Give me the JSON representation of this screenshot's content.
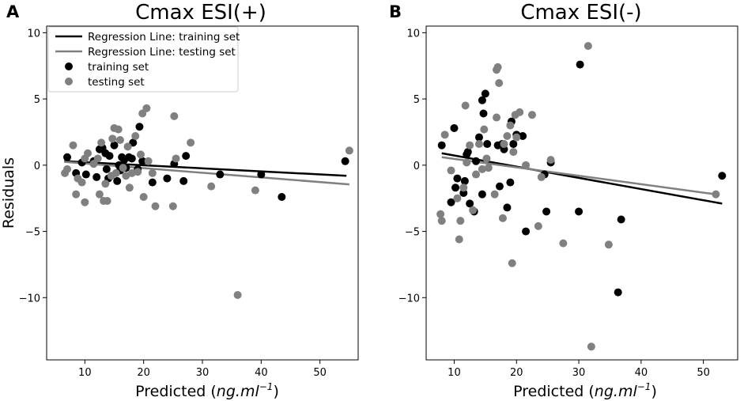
{
  "figure": {
    "ylabel": "Residuals",
    "xlabel_prefix": "Predicted (",
    "xlabel_unit": "ng.ml",
    "xlabel_exp": "−1",
    "xlabel_suffix": ")",
    "colors": {
      "training": "#000000",
      "testing": "#808080"
    }
  },
  "chart_data": [
    {
      "type": "scatter",
      "panel_letter": "A",
      "title": "Cmax ESI(+)",
      "xlim": [
        3.5,
        56.5
      ],
      "ylim": [
        -14.7,
        10.5
      ],
      "xticks": [
        10,
        20,
        30,
        40,
        50
      ],
      "yticks": [
        -10,
        -5,
        0,
        5,
        10
      ],
      "ytick_labels": [
        "−10",
        "−5",
        "0",
        "5",
        "10"
      ],
      "legend": {
        "position": "top-left",
        "entries": [
          {
            "label": "Regression Line: training set",
            "kind": "line",
            "color": "#000000"
          },
          {
            "label": "Regression Line: testing set",
            "kind": "line",
            "color": "#808080"
          },
          {
            "label": "training set",
            "kind": "marker",
            "color": "#000000"
          },
          {
            "label": "testing set",
            "kind": "marker",
            "color": "#808080"
          }
        ]
      },
      "regression_lines": [
        {
          "name": "Regression Line: training set",
          "color": "#000000",
          "x": [
            6.5,
            54.5
          ],
          "y": [
            0.3,
            -0.8
          ]
        },
        {
          "name": "Regression Line: testing set",
          "color": "#808080",
          "x": [
            6.5,
            55
          ],
          "y": [
            0.25,
            -1.45
          ]
        }
      ],
      "series": [
        {
          "name": "training set",
          "color": "#000000",
          "points": [
            [
              7.0,
              0.6
            ],
            [
              8.5,
              -0.6
            ],
            [
              9.5,
              0.2
            ],
            [
              10.2,
              -0.7
            ],
            [
              11.5,
              0.3
            ],
            [
              12.0,
              -0.9
            ],
            [
              12.5,
              1.2
            ],
            [
              13.0,
              1.3
            ],
            [
              13.5,
              0.9
            ],
            [
              13.7,
              -0.3
            ],
            [
              14.0,
              -1.0
            ],
            [
              14.2,
              0.7
            ],
            [
              15.0,
              1.5
            ],
            [
              15.5,
              -1.2
            ],
            [
              15.8,
              0.0
            ],
            [
              16.0,
              -0.4
            ],
            [
              16.3,
              0.6
            ],
            [
              16.7,
              0.4
            ],
            [
              17.0,
              -0.2
            ],
            [
              17.5,
              0.6
            ],
            [
              18.0,
              0.5
            ],
            [
              18.2,
              1.7
            ],
            [
              19.0,
              -0.3
            ],
            [
              19.3,
              2.9
            ],
            [
              19.8,
              0.3
            ],
            [
              21.5,
              -1.3
            ],
            [
              24.0,
              -1.0
            ],
            [
              25.2,
              0.1
            ],
            [
              26.8,
              -1.2
            ],
            [
              27.2,
              0.7
            ],
            [
              33.0,
              -0.7
            ],
            [
              40.0,
              -0.7
            ],
            [
              43.5,
              -2.4
            ],
            [
              54.3,
              0.3
            ]
          ]
        },
        {
          "name": "testing set",
          "color": "#808080",
          "points": [
            [
              6.6,
              -0.6
            ],
            [
              7.0,
              -0.3
            ],
            [
              8.0,
              1.5
            ],
            [
              8.5,
              -2.2
            ],
            [
              8.8,
              -1.0
            ],
            [
              9.5,
              -1.3
            ],
            [
              10.0,
              0.5
            ],
            [
              10.0,
              -2.8
            ],
            [
              10.5,
              0.9
            ],
            [
              11.5,
              0.1
            ],
            [
              12.2,
              0.5
            ],
            [
              12.5,
              -2.2
            ],
            [
              12.8,
              1.7
            ],
            [
              13.2,
              -2.7
            ],
            [
              13.5,
              -1.4
            ],
            [
              13.8,
              -2.7
            ],
            [
              14.5,
              -0.8
            ],
            [
              14.7,
              2.0
            ],
            [
              15.0,
              2.8
            ],
            [
              15.3,
              -0.6
            ],
            [
              15.7,
              2.7
            ],
            [
              16.0,
              1.9
            ],
            [
              16.5,
              -0.2
            ],
            [
              17.0,
              -0.8
            ],
            [
              17.3,
              1.4
            ],
            [
              17.6,
              -1.7
            ],
            [
              18.0,
              -0.6
            ],
            [
              18.6,
              2.2
            ],
            [
              19.0,
              -0.5
            ],
            [
              19.5,
              0.8
            ],
            [
              19.8,
              3.9
            ],
            [
              20.0,
              -2.4
            ],
            [
              20.5,
              4.3
            ],
            [
              20.8,
              0.3
            ],
            [
              21.5,
              -0.6
            ],
            [
              22.0,
              -3.1
            ],
            [
              25.0,
              -3.1
            ],
            [
              25.2,
              3.7
            ],
            [
              25.5,
              0.5
            ],
            [
              28.0,
              1.7
            ],
            [
              31.5,
              -1.6
            ],
            [
              36.0,
              -9.8
            ],
            [
              39.0,
              -1.9
            ],
            [
              55.0,
              1.1
            ]
          ]
        }
      ]
    },
    {
      "type": "scatter",
      "panel_letter": "B",
      "title": "Cmax ESI(-)",
      "xlim": [
        5.5,
        55.5
      ],
      "ylim": [
        -14.7,
        10.5
      ],
      "xticks": [
        10,
        20,
        30,
        40,
        50
      ],
      "yticks": [
        -10,
        -5,
        0,
        5,
        10
      ],
      "ytick_labels": [
        "−10",
        "−5",
        "0",
        "5",
        "10"
      ],
      "regression_lines": [
        {
          "name": "Regression Line: training set",
          "color": "#000000",
          "x": [
            8.0,
            53.0
          ],
          "y": [
            0.9,
            -2.9
          ]
        },
        {
          "name": "Regression Line: testing set",
          "color": "#808080",
          "x": [
            8.0,
            52.0
          ],
          "y": [
            0.6,
            -2.2
          ]
        }
      ],
      "series": [
        {
          "name": "training set",
          "color": "#000000",
          "points": [
            [
              8.0,
              1.5
            ],
            [
              9.5,
              -2.8
            ],
            [
              10.0,
              2.8
            ],
            [
              10.2,
              -1.7
            ],
            [
              10.5,
              -1.0
            ],
            [
              11.5,
              -2.1
            ],
            [
              11.7,
              -1.2
            ],
            [
              12.0,
              0.8
            ],
            [
              12.2,
              1.0
            ],
            [
              12.5,
              -2.9
            ],
            [
              13.2,
              -3.5
            ],
            [
              13.5,
              0.3
            ],
            [
              14.0,
              2.1
            ],
            [
              14.5,
              -2.2
            ],
            [
              14.5,
              4.9
            ],
            [
              14.7,
              3.9
            ],
            [
              15.0,
              5.4
            ],
            [
              15.3,
              1.6
            ],
            [
              17.0,
              1.5
            ],
            [
              17.3,
              -1.6
            ],
            [
              17.7,
              1.6
            ],
            [
              18.0,
              1.2
            ],
            [
              18.5,
              -3.2
            ],
            [
              19.0,
              -1.3
            ],
            [
              19.2,
              3.3
            ],
            [
              19.5,
              1.6
            ],
            [
              20.0,
              2.3
            ],
            [
              21.0,
              2.2
            ],
            [
              21.5,
              -5.0
            ],
            [
              24.5,
              -0.7
            ],
            [
              24.8,
              -3.5
            ],
            [
              25.5,
              0.2
            ],
            [
              30.0,
              -3.5
            ],
            [
              30.2,
              7.6
            ],
            [
              36.3,
              -9.6
            ],
            [
              36.8,
              -4.1
            ],
            [
              53.0,
              -0.8
            ]
          ]
        },
        {
          "name": "testing set",
          "color": "#808080",
          "points": [
            [
              7.8,
              -3.7
            ],
            [
              8.0,
              -4.2
            ],
            [
              8.5,
              2.3
            ],
            [
              9.5,
              -0.4
            ],
            [
              10.5,
              -2.5
            ],
            [
              10.8,
              -5.6
            ],
            [
              11.0,
              -4.2
            ],
            [
              11.5,
              -1.7
            ],
            [
              11.8,
              4.5
            ],
            [
              12.0,
              0.2
            ],
            [
              12.5,
              1.5
            ],
            [
              13.0,
              -3.4
            ],
            [
              13.5,
              -0.7
            ],
            [
              14.0,
              1.6
            ],
            [
              14.5,
              -0.3
            ],
            [
              14.8,
              2.7
            ],
            [
              15.2,
              0.5
            ],
            [
              15.5,
              -0.2
            ],
            [
              16.5,
              -2.2
            ],
            [
              16.8,
              3.6
            ],
            [
              16.8,
              7.2
            ],
            [
              17.0,
              7.4
            ],
            [
              17.2,
              6.2
            ],
            [
              17.8,
              -4.0
            ],
            [
              18.0,
              1.6
            ],
            [
              18.5,
              2.2
            ],
            [
              19.0,
              3.0
            ],
            [
              19.3,
              -7.4
            ],
            [
              19.5,
              1.0
            ],
            [
              19.8,
              3.8
            ],
            [
              20.0,
              2.1
            ],
            [
              20.5,
              4.0
            ],
            [
              21.5,
              0.0
            ],
            [
              22.5,
              3.8
            ],
            [
              23.5,
              -4.6
            ],
            [
              24.0,
              -0.9
            ],
            [
              25.5,
              0.4
            ],
            [
              27.5,
              -5.9
            ],
            [
              31.5,
              9.0
            ],
            [
              32.0,
              -13.7
            ],
            [
              34.8,
              -6.0
            ],
            [
              52.0,
              -2.2
            ]
          ]
        }
      ]
    }
  ]
}
